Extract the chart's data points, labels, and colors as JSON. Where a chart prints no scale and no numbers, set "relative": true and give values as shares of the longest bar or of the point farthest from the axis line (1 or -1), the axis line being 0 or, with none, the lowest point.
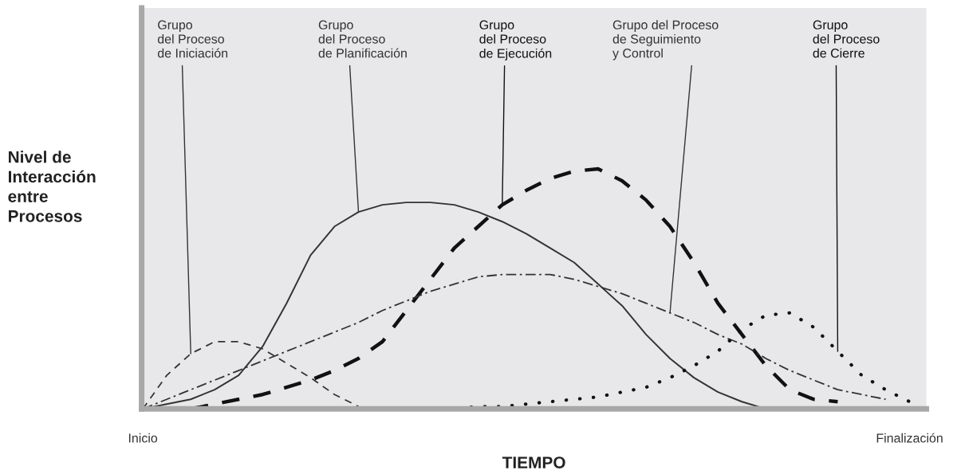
{
  "chart_data": {
    "type": "line",
    "relative": true,
    "xlabel": "TIEMPO",
    "ylabel": "Nivel de\nInteracción\nentre\nProcesos",
    "tick_labels": "x",
    "grid": false,
    "legend": false,
    "categories": [
      "Inicio",
      null,
      null,
      null,
      null,
      null,
      null,
      null,
      null,
      null,
      null,
      null,
      null,
      null,
      null,
      null,
      null,
      null,
      null,
      null,
      null,
      null,
      null,
      null,
      null,
      null,
      null,
      null,
      null,
      null,
      null,
      null,
      "Finalización"
    ],
    "series": [
      {
        "name": "Grupo\ndel Proceso\nde Iniciación",
        "color": "#333333",
        "line_style": "dashed",
        "values": [
          0,
          0.14,
          0.23,
          0.28,
          0.28,
          0.25,
          0.19,
          0.13,
          0.06,
          0.01,
          null,
          null,
          null,
          null,
          null,
          null,
          null,
          null,
          null,
          null,
          null,
          null,
          null,
          null,
          null,
          null,
          null,
          null,
          null,
          null,
          null,
          null,
          null
        ]
      },
      {
        "name": "Grupo\ndel Proceso\nde Planificación",
        "color": "#333333",
        "line_style": "solid",
        "values": [
          0,
          0.02,
          0.04,
          0.08,
          0.14,
          0.26,
          0.44,
          0.64,
          0.76,
          0.82,
          0.85,
          0.86,
          0.86,
          0.85,
          0.82,
          0.78,
          0.73,
          0.67,
          0.61,
          0.52,
          0.43,
          0.31,
          0.21,
          0.13,
          0.07,
          0.03,
          0,
          null,
          null,
          null,
          null,
          null,
          null
        ]
      },
      {
        "name": "Grupo\ndel Proceso\nde Ejecución",
        "color": "#111111",
        "line_style": "dashed",
        "values": [
          null,
          null,
          0,
          0.02,
          0.04,
          0.06,
          0.09,
          0.12,
          0.16,
          0.21,
          0.28,
          0.41,
          0.54,
          0.67,
          0.76,
          0.85,
          0.91,
          0.96,
          0.99,
          1,
          0.95,
          0.87,
          0.76,
          0.61,
          0.44,
          0.31,
          0.18,
          0.08,
          0.04,
          0.03,
          null,
          null,
          null
        ]
      },
      {
        "name": "Grupo del Proceso\nde Seguimiento\ny Control",
        "color": "#333333",
        "line_style": "dashdot",
        "values": [
          0,
          0.04,
          0.08,
          0.12,
          0.16,
          0.2,
          0.24,
          0.28,
          0.32,
          0.36,
          0.41,
          0.45,
          0.49,
          0.52,
          0.55,
          0.56,
          0.56,
          0.56,
          0.54,
          0.51,
          0.48,
          0.44,
          0.4,
          0.36,
          0.31,
          0.27,
          0.21,
          0.16,
          0.12,
          0.08,
          0.06,
          0.04,
          null
        ]
      },
      {
        "name": "Grupo\ndel Proceso\nde Cierre",
        "color": "#111111",
        "line_style": "dotted",
        "values": [
          null,
          null,
          null,
          null,
          null,
          null,
          null,
          null,
          null,
          null,
          null,
          null,
          0,
          0,
          0.01,
          0.01,
          0.02,
          0.03,
          0.04,
          0.05,
          0.07,
          0.09,
          0.13,
          0.18,
          0.24,
          0.33,
          0.39,
          0.4,
          0.34,
          0.24,
          0.14,
          0.08,
          0.03
        ]
      }
    ]
  }
}
